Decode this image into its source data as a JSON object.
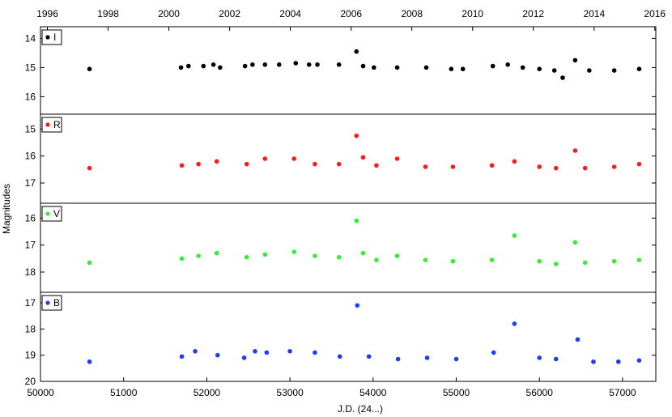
{
  "chart_data": {
    "type": "scatter",
    "xlabel": "J.D. (24...)",
    "ylabel": "Magnitudes",
    "x_range": [
      50000,
      57400
    ],
    "top_axis": {
      "ticks": [
        {
          "label": "1996",
          "jd": 50083
        },
        {
          "label": "1998",
          "jd": 50814
        },
        {
          "label": "2000",
          "jd": 51544
        },
        {
          "label": "2002",
          "jd": 52275
        },
        {
          "label": "2004",
          "jd": 53005
        },
        {
          "label": "2006",
          "jd": 53736
        },
        {
          "label": "2008",
          "jd": 54466
        },
        {
          "label": "2010",
          "jd": 55197
        },
        {
          "label": "2012",
          "jd": 55927
        },
        {
          "label": "2014",
          "jd": 56658
        },
        {
          "label": "2016",
          "jd": 57388
        }
      ]
    },
    "bottom_axis": {
      "ticks": [
        50000,
        51000,
        52000,
        53000,
        54000,
        55000,
        56000,
        57000
      ]
    },
    "panels": [
      {
        "band": "I",
        "color": "#000000",
        "ylim": [
          16.6,
          13.6
        ],
        "yticks": [
          14,
          15,
          16
        ],
        "points": [
          {
            "jd": 50590,
            "mag": 15.05
          },
          {
            "jd": 51690,
            "mag": 15.0
          },
          {
            "jd": 51780,
            "mag": 14.95
          },
          {
            "jd": 51960,
            "mag": 14.95
          },
          {
            "jd": 52080,
            "mag": 14.9
          },
          {
            "jd": 52160,
            "mag": 15.0
          },
          {
            "jd": 52460,
            "mag": 14.95
          },
          {
            "jd": 52550,
            "mag": 14.9
          },
          {
            "jd": 52700,
            "mag": 14.9
          },
          {
            "jd": 52870,
            "mag": 14.9
          },
          {
            "jd": 53070,
            "mag": 14.85
          },
          {
            "jd": 53230,
            "mag": 14.9
          },
          {
            "jd": 53330,
            "mag": 14.9
          },
          {
            "jd": 53590,
            "mag": 14.9
          },
          {
            "jd": 53800,
            "mag": 14.45
          },
          {
            "jd": 53880,
            "mag": 14.95
          },
          {
            "jd": 54010,
            "mag": 15.0
          },
          {
            "jd": 54290,
            "mag": 15.0
          },
          {
            "jd": 54640,
            "mag": 15.0
          },
          {
            "jd": 54940,
            "mag": 15.05
          },
          {
            "jd": 55080,
            "mag": 15.05
          },
          {
            "jd": 55440,
            "mag": 14.95
          },
          {
            "jd": 55620,
            "mag": 14.9
          },
          {
            "jd": 55800,
            "mag": 15.0
          },
          {
            "jd": 56000,
            "mag": 15.05
          },
          {
            "jd": 56180,
            "mag": 15.1
          },
          {
            "jd": 56280,
            "mag": 15.35
          },
          {
            "jd": 56430,
            "mag": 14.75
          },
          {
            "jd": 56600,
            "mag": 15.1
          },
          {
            "jd": 56900,
            "mag": 15.1
          },
          {
            "jd": 57200,
            "mag": 15.05
          }
        ]
      },
      {
        "band": "R",
        "color": "#ff1a1a",
        "ylim": [
          17.75,
          14.45
        ],
        "yticks": [
          15,
          16,
          17
        ],
        "points": [
          {
            "jd": 50590,
            "mag": 16.45
          },
          {
            "jd": 51700,
            "mag": 16.35
          },
          {
            "jd": 51900,
            "mag": 16.3
          },
          {
            "jd": 52120,
            "mag": 16.2
          },
          {
            "jd": 52480,
            "mag": 16.3
          },
          {
            "jd": 52700,
            "mag": 16.1
          },
          {
            "jd": 53050,
            "mag": 16.1
          },
          {
            "jd": 53300,
            "mag": 16.3
          },
          {
            "jd": 53590,
            "mag": 16.3
          },
          {
            "jd": 53800,
            "mag": 15.25
          },
          {
            "jd": 53880,
            "mag": 16.05
          },
          {
            "jd": 54040,
            "mag": 16.35
          },
          {
            "jd": 54290,
            "mag": 16.1
          },
          {
            "jd": 54630,
            "mag": 16.4
          },
          {
            "jd": 54960,
            "mag": 16.4
          },
          {
            "jd": 55430,
            "mag": 16.35
          },
          {
            "jd": 55700,
            "mag": 16.2
          },
          {
            "jd": 56000,
            "mag": 16.4
          },
          {
            "jd": 56200,
            "mag": 16.45
          },
          {
            "jd": 56430,
            "mag": 15.8
          },
          {
            "jd": 56550,
            "mag": 16.45
          },
          {
            "jd": 56900,
            "mag": 16.4
          },
          {
            "jd": 57200,
            "mag": 16.3
          }
        ]
      },
      {
        "band": "V",
        "color": "#33ee33",
        "ylim": [
          18.75,
          15.45
        ],
        "yticks": [
          16,
          17,
          18
        ],
        "points": [
          {
            "jd": 50590,
            "mag": 17.65
          },
          {
            "jd": 51700,
            "mag": 17.5
          },
          {
            "jd": 51900,
            "mag": 17.4
          },
          {
            "jd": 52120,
            "mag": 17.3
          },
          {
            "jd": 52480,
            "mag": 17.45
          },
          {
            "jd": 52700,
            "mag": 17.35
          },
          {
            "jd": 53050,
            "mag": 17.25
          },
          {
            "jd": 53300,
            "mag": 17.4
          },
          {
            "jd": 53590,
            "mag": 17.45
          },
          {
            "jd": 53800,
            "mag": 16.1
          },
          {
            "jd": 53880,
            "mag": 17.3
          },
          {
            "jd": 54040,
            "mag": 17.55
          },
          {
            "jd": 54290,
            "mag": 17.4
          },
          {
            "jd": 54630,
            "mag": 17.55
          },
          {
            "jd": 54960,
            "mag": 17.6
          },
          {
            "jd": 55430,
            "mag": 17.55
          },
          {
            "jd": 55700,
            "mag": 16.65
          },
          {
            "jd": 56000,
            "mag": 17.6
          },
          {
            "jd": 56200,
            "mag": 17.7
          },
          {
            "jd": 56430,
            "mag": 16.9
          },
          {
            "jd": 56550,
            "mag": 17.65
          },
          {
            "jd": 56900,
            "mag": 17.6
          },
          {
            "jd": 57200,
            "mag": 17.55
          }
        ]
      },
      {
        "band": "B",
        "color": "#1f3bff",
        "ylim": [
          20.0,
          16.6
        ],
        "yticks": [
          17,
          18,
          19,
          20
        ],
        "points": [
          {
            "jd": 50590,
            "mag": 19.25
          },
          {
            "jd": 51700,
            "mag": 19.05
          },
          {
            "jd": 51860,
            "mag": 18.85
          },
          {
            "jd": 52130,
            "mag": 19.0
          },
          {
            "jd": 52450,
            "mag": 19.1
          },
          {
            "jd": 52580,
            "mag": 18.85
          },
          {
            "jd": 52720,
            "mag": 18.9
          },
          {
            "jd": 53000,
            "mag": 18.85
          },
          {
            "jd": 53300,
            "mag": 18.9
          },
          {
            "jd": 53600,
            "mag": 19.05
          },
          {
            "jd": 53810,
            "mag": 17.1
          },
          {
            "jd": 53950,
            "mag": 19.05
          },
          {
            "jd": 54300,
            "mag": 19.15
          },
          {
            "jd": 54650,
            "mag": 19.1
          },
          {
            "jd": 55000,
            "mag": 19.15
          },
          {
            "jd": 55450,
            "mag": 18.9
          },
          {
            "jd": 55700,
            "mag": 17.8
          },
          {
            "jd": 56000,
            "mag": 19.1
          },
          {
            "jd": 56200,
            "mag": 19.15
          },
          {
            "jd": 56460,
            "mag": 18.4
          },
          {
            "jd": 56650,
            "mag": 19.25
          },
          {
            "jd": 56950,
            "mag": 19.25
          },
          {
            "jd": 57200,
            "mag": 19.2
          }
        ]
      }
    ]
  }
}
